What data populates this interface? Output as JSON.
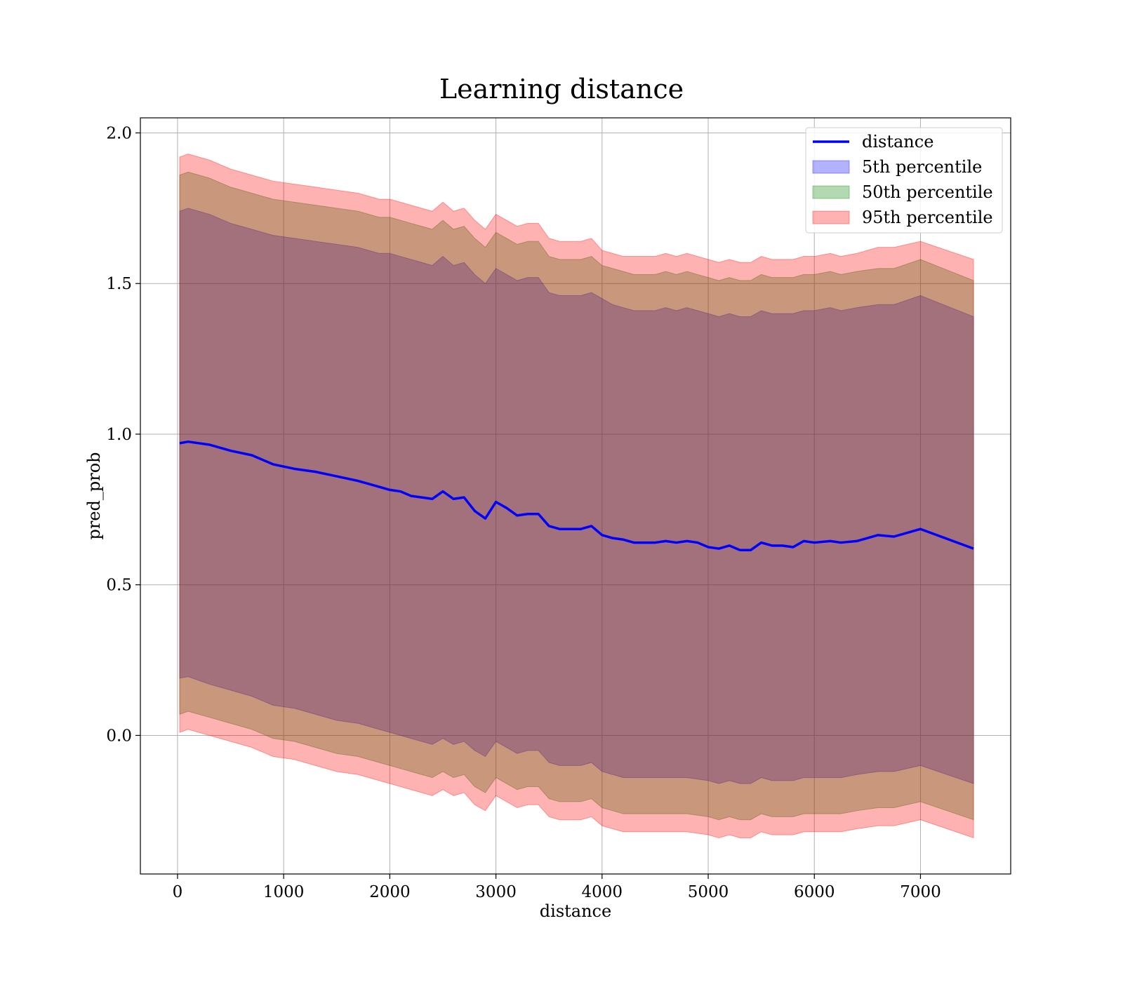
{
  "chart_data": {
    "type": "area",
    "title": "Learning distance",
    "xlabel": "distance",
    "ylabel": "pred_prob",
    "xlim": [
      -350,
      7850
    ],
    "ylim": [
      -0.46,
      2.05
    ],
    "xticks": [
      0,
      1000,
      2000,
      3000,
      4000,
      5000,
      6000,
      7000
    ],
    "xtick_labels": [
      "0",
      "1000",
      "2000",
      "3000",
      "4000",
      "5000",
      "6000",
      "7000"
    ],
    "yticks": [
      0.0,
      0.5,
      1.0,
      1.5,
      2.0
    ],
    "ytick_labels": [
      "0.0",
      "0.5",
      "1.0",
      "1.5",
      "2.0"
    ],
    "grid": true,
    "legend_position": "top-right",
    "x": [
      20,
      100,
      300,
      500,
      700,
      900,
      1100,
      1300,
      1500,
      1700,
      1900,
      2000,
      2100,
      2200,
      2300,
      2400,
      2500,
      2600,
      2700,
      2800,
      2900,
      3000,
      3100,
      3200,
      3300,
      3400,
      3500,
      3600,
      3700,
      3800,
      3900,
      4000,
      4100,
      4200,
      4300,
      4400,
      4500,
      4600,
      4700,
      4800,
      4900,
      5000,
      5100,
      5200,
      5300,
      5400,
      5500,
      5600,
      5700,
      5800,
      5900,
      6000,
      6150,
      6250,
      6400,
      6600,
      6750,
      7000,
      7500
    ],
    "series": [
      {
        "name": "distance",
        "kind": "line",
        "color": "#0000ff",
        "values": [
          0.97,
          0.975,
          0.965,
          0.945,
          0.93,
          0.9,
          0.885,
          0.875,
          0.86,
          0.845,
          0.825,
          0.815,
          0.81,
          0.795,
          0.79,
          0.785,
          0.81,
          0.785,
          0.79,
          0.745,
          0.72,
          0.775,
          0.755,
          0.73,
          0.735,
          0.735,
          0.695,
          0.685,
          0.685,
          0.685,
          0.695,
          0.665,
          0.655,
          0.65,
          0.64,
          0.64,
          0.64,
          0.645,
          0.64,
          0.645,
          0.64,
          0.625,
          0.62,
          0.63,
          0.615,
          0.615,
          0.64,
          0.63,
          0.63,
          0.625,
          0.645,
          0.64,
          0.645,
          0.64,
          0.645,
          0.665,
          0.66,
          0.685,
          0.62
        ]
      },
      {
        "name": "5th percentile",
        "kind": "band",
        "color": "#0000ff",
        "lower": [
          0.19,
          0.195,
          0.17,
          0.15,
          0.13,
          0.1,
          0.09,
          0.07,
          0.05,
          0.04,
          0.02,
          0.01,
          0.0,
          -0.01,
          -0.02,
          -0.03,
          -0.01,
          -0.03,
          -0.02,
          -0.05,
          -0.07,
          -0.02,
          -0.04,
          -0.06,
          -0.05,
          -0.05,
          -0.09,
          -0.1,
          -0.1,
          -0.1,
          -0.09,
          -0.12,
          -0.13,
          -0.14,
          -0.14,
          -0.14,
          -0.14,
          -0.14,
          -0.14,
          -0.14,
          -0.145,
          -0.15,
          -0.16,
          -0.15,
          -0.16,
          -0.16,
          -0.14,
          -0.15,
          -0.15,
          -0.15,
          -0.14,
          -0.14,
          -0.14,
          -0.14,
          -0.13,
          -0.12,
          -0.12,
          -0.1,
          -0.16
        ],
        "upper": [
          1.74,
          1.75,
          1.73,
          1.7,
          1.68,
          1.66,
          1.65,
          1.64,
          1.63,
          1.62,
          1.6,
          1.6,
          1.59,
          1.58,
          1.57,
          1.56,
          1.59,
          1.56,
          1.57,
          1.53,
          1.5,
          1.55,
          1.53,
          1.51,
          1.52,
          1.52,
          1.47,
          1.46,
          1.46,
          1.46,
          1.47,
          1.45,
          1.43,
          1.42,
          1.41,
          1.41,
          1.41,
          1.42,
          1.41,
          1.42,
          1.41,
          1.4,
          1.39,
          1.4,
          1.39,
          1.39,
          1.41,
          1.4,
          1.4,
          1.4,
          1.41,
          1.41,
          1.42,
          1.41,
          1.42,
          1.43,
          1.43,
          1.46,
          1.39
        ]
      },
      {
        "name": "50th percentile",
        "kind": "band",
        "color": "#008000",
        "lower": [
          0.07,
          0.08,
          0.06,
          0.04,
          0.02,
          -0.01,
          -0.02,
          -0.04,
          -0.06,
          -0.07,
          -0.09,
          -0.1,
          -0.11,
          -0.12,
          -0.13,
          -0.14,
          -0.12,
          -0.14,
          -0.13,
          -0.17,
          -0.19,
          -0.14,
          -0.16,
          -0.18,
          -0.17,
          -0.17,
          -0.21,
          -0.22,
          -0.22,
          -0.22,
          -0.21,
          -0.24,
          -0.25,
          -0.26,
          -0.26,
          -0.26,
          -0.26,
          -0.26,
          -0.26,
          -0.26,
          -0.265,
          -0.27,
          -0.28,
          -0.27,
          -0.28,
          -0.28,
          -0.26,
          -0.27,
          -0.27,
          -0.27,
          -0.26,
          -0.26,
          -0.26,
          -0.26,
          -0.25,
          -0.24,
          -0.24,
          -0.22,
          -0.28
        ],
        "upper": [
          1.86,
          1.87,
          1.85,
          1.82,
          1.8,
          1.78,
          1.77,
          1.76,
          1.75,
          1.74,
          1.72,
          1.72,
          1.71,
          1.7,
          1.69,
          1.68,
          1.71,
          1.68,
          1.69,
          1.65,
          1.62,
          1.67,
          1.65,
          1.63,
          1.64,
          1.64,
          1.59,
          1.58,
          1.58,
          1.58,
          1.59,
          1.56,
          1.55,
          1.54,
          1.53,
          1.53,
          1.53,
          1.54,
          1.53,
          1.54,
          1.53,
          1.52,
          1.51,
          1.52,
          1.51,
          1.51,
          1.53,
          1.52,
          1.52,
          1.52,
          1.53,
          1.53,
          1.54,
          1.53,
          1.54,
          1.55,
          1.55,
          1.58,
          1.51
        ]
      },
      {
        "name": "95th percentile",
        "kind": "band",
        "color": "#ff0000",
        "lower": [
          0.01,
          0.02,
          0.0,
          -0.02,
          -0.04,
          -0.07,
          -0.08,
          -0.1,
          -0.12,
          -0.13,
          -0.15,
          -0.16,
          -0.17,
          -0.18,
          -0.19,
          -0.2,
          -0.18,
          -0.2,
          -0.19,
          -0.23,
          -0.25,
          -0.2,
          -0.22,
          -0.24,
          -0.23,
          -0.23,
          -0.27,
          -0.28,
          -0.28,
          -0.28,
          -0.27,
          -0.3,
          -0.31,
          -0.32,
          -0.32,
          -0.32,
          -0.32,
          -0.32,
          -0.32,
          -0.32,
          -0.325,
          -0.33,
          -0.34,
          -0.33,
          -0.34,
          -0.34,
          -0.32,
          -0.33,
          -0.33,
          -0.33,
          -0.32,
          -0.32,
          -0.32,
          -0.32,
          -0.31,
          -0.3,
          -0.3,
          -0.28,
          -0.34
        ],
        "upper": [
          1.92,
          1.93,
          1.91,
          1.88,
          1.86,
          1.84,
          1.83,
          1.82,
          1.81,
          1.8,
          1.78,
          1.78,
          1.77,
          1.76,
          1.75,
          1.74,
          1.77,
          1.74,
          1.75,
          1.71,
          1.68,
          1.73,
          1.71,
          1.69,
          1.7,
          1.7,
          1.65,
          1.64,
          1.64,
          1.64,
          1.65,
          1.61,
          1.6,
          1.59,
          1.59,
          1.59,
          1.59,
          1.6,
          1.59,
          1.6,
          1.59,
          1.58,
          1.57,
          1.58,
          1.57,
          1.57,
          1.59,
          1.58,
          1.58,
          1.58,
          1.59,
          1.59,
          1.6,
          1.59,
          1.6,
          1.62,
          1.62,
          1.64,
          1.58
        ]
      }
    ]
  }
}
